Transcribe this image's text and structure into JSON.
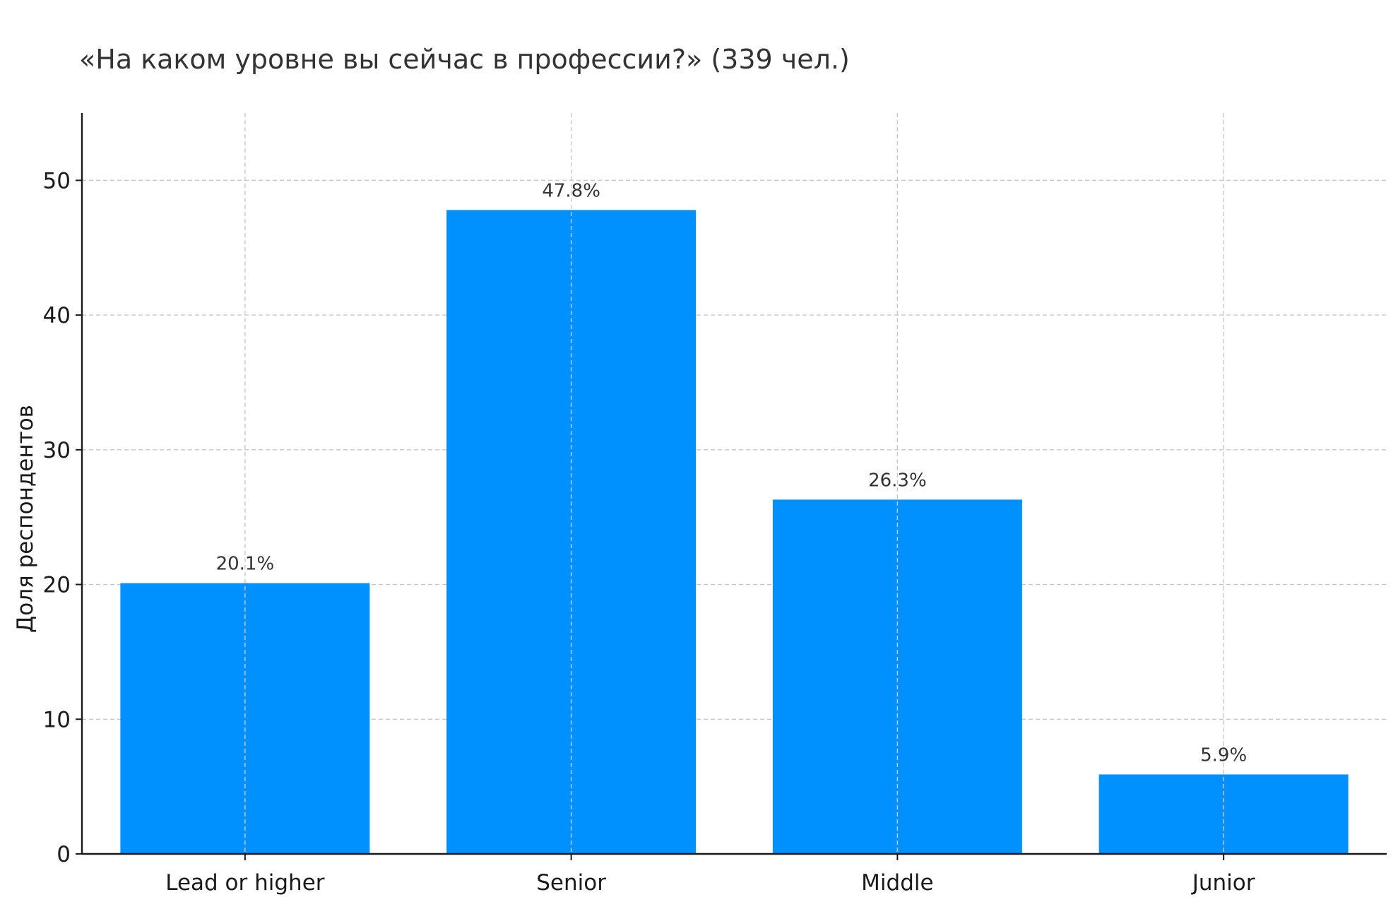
{
  "chart_data": {
    "type": "bar",
    "title": "«На каком уровне вы сейчас в профессии?» (339 чел.)",
    "xlabel": "",
    "ylabel": "Доля респондентов",
    "categories": [
      "Lead or higher",
      "Senior",
      "Middle",
      "Junior"
    ],
    "values": [
      20.1,
      47.8,
      26.3,
      5.9
    ],
    "data_labels": [
      "20.1%",
      "47.8%",
      "26.3%",
      "5.9%"
    ],
    "ylim": [
      0,
      55
    ],
    "yticks": [
      0,
      10,
      20,
      30,
      40,
      50
    ],
    "grid": true,
    "bar_color": "#0091ff"
  }
}
